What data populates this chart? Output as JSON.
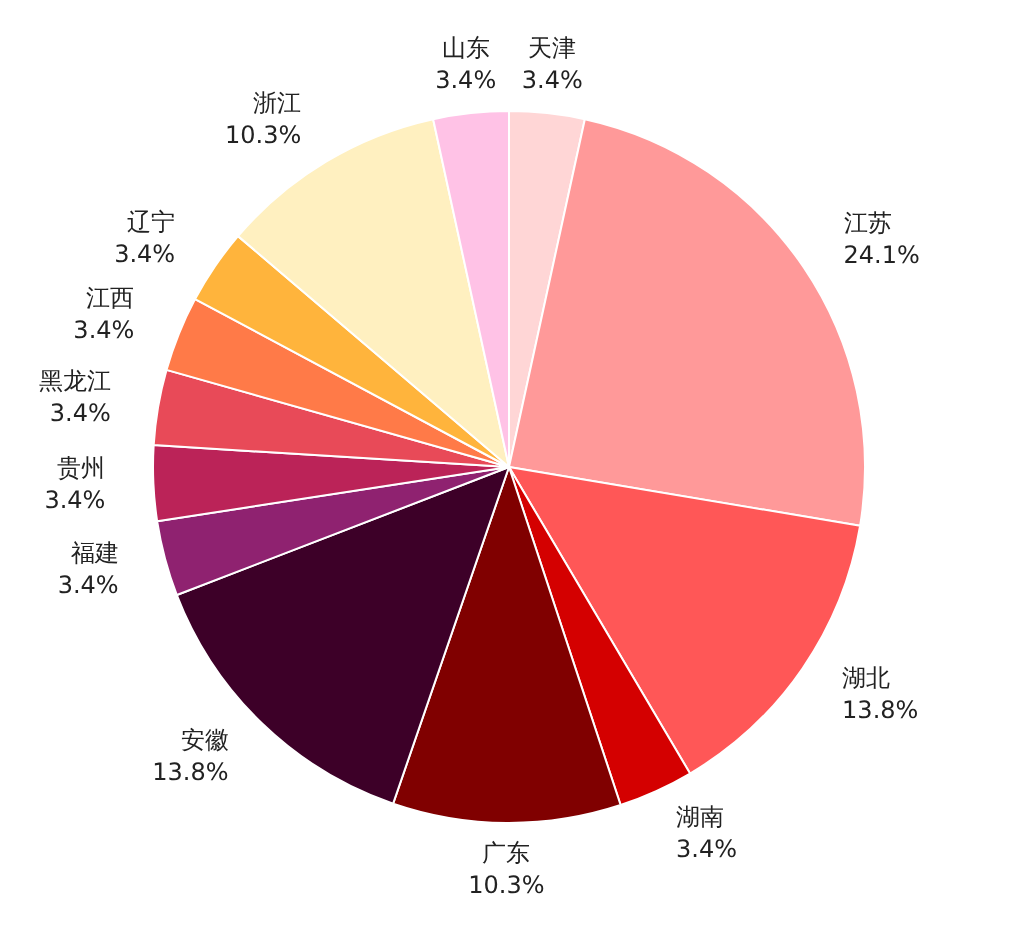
{
  "chart_data": {
    "type": "pie",
    "categories": [
      "天津",
      "江苏",
      "湖北",
      "湖南",
      "广东",
      "安徽",
      "福建",
      "贵州",
      "黑龙江",
      "江西",
      "辽宁",
      "浙江",
      "山东"
    ],
    "values": [
      3.4,
      24.1,
      13.8,
      3.4,
      10.3,
      13.8,
      3.4,
      3.4,
      3.4,
      3.4,
      3.4,
      10.3,
      3.4
    ],
    "value_labels": [
      "3.4%",
      "24.1%",
      "13.8%",
      "3.4%",
      "10.3%",
      "13.8%",
      "3.4%",
      "3.4%",
      "3.4%",
      "3.4%",
      "3.4%",
      "10.3%",
      "3.4%"
    ],
    "colors": [
      "#ffd6d6",
      "#ff9999",
      "#ff5757",
      "#d40000",
      "#800000",
      "#3d0028",
      "#8f2270",
      "#bb2358",
      "#e84a58",
      "#ff7a48",
      "#ffb43c",
      "#fff0c0",
      "#ffc2e6"
    ],
    "legend": false
  }
}
